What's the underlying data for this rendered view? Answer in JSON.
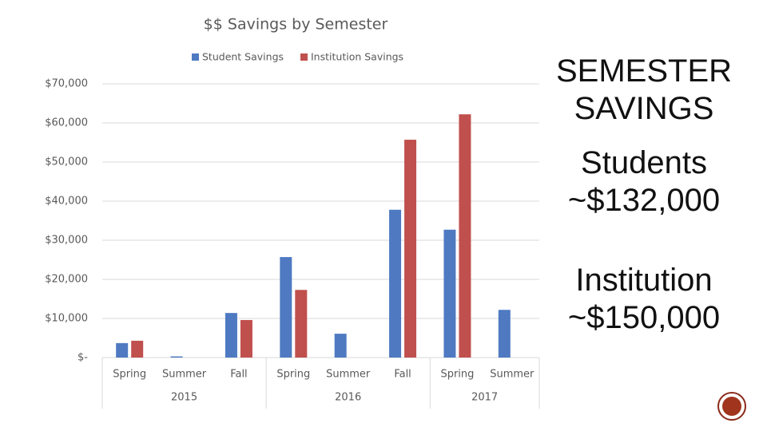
{
  "chart_data": {
    "type": "bar",
    "title": "$$ Savings by Semester",
    "groups": [
      {
        "name": "2015",
        "categories": [
          "Spring",
          "Summer",
          "Fall"
        ]
      },
      {
        "name": "2016",
        "categories": [
          "Spring",
          "Summer",
          "Fall"
        ]
      },
      {
        "name": "2017",
        "categories": [
          "Spring",
          "Summer"
        ]
      }
    ],
    "series": [
      {
        "name": "Student Savings",
        "color": "#4f7ac2",
        "values": [
          3700,
          300,
          11400,
          25700,
          6100,
          37800,
          32700,
          12200
        ]
      },
      {
        "name": "Institution Savings",
        "color": "#c0504d",
        "values": [
          4300,
          null,
          9600,
          17300,
          null,
          55700,
          62200,
          null
        ]
      }
    ],
    "ylim": [
      0,
      70000
    ],
    "yticks": [
      {
        "value": 0,
        "label": "$-"
      },
      {
        "value": 10000,
        "label": "$10,000"
      },
      {
        "value": 20000,
        "label": "$20,000"
      },
      {
        "value": 30000,
        "label": "$30,000"
      },
      {
        "value": 40000,
        "label": "$40,000"
      },
      {
        "value": 50000,
        "label": "$50,000"
      },
      {
        "value": 60000,
        "label": "$60,000"
      },
      {
        "value": 70000,
        "label": "$70,000"
      }
    ],
    "grid": true,
    "legend": "top"
  },
  "side": {
    "heading": [
      "SEMESTER",
      "SAVINGS"
    ],
    "items": [
      {
        "label": "Students",
        "amount": "~$132,000"
      },
      {
        "label": "Institution",
        "amount": "~$150,000"
      }
    ]
  }
}
